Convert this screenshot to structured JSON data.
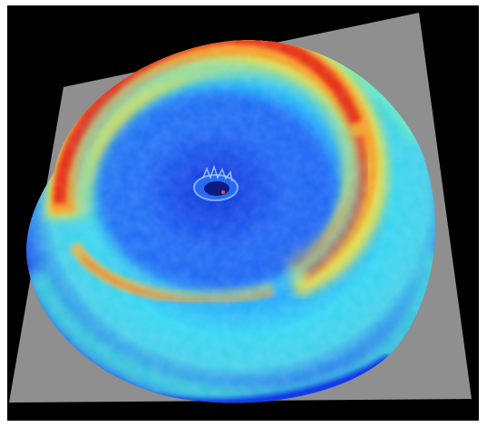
{
  "scene": {
    "subject": "3d-surface-render",
    "colormap": "jet",
    "colors": {
      "frame": "#ffffff",
      "background": "#000000",
      "base_plane": "#8f8f8f",
      "low": "#0a3cf0",
      "mid_low": "#28c0f8",
      "mid": "#5ff0c4",
      "mid_high": "#f2d83a",
      "high": "#f01e10"
    }
  }
}
